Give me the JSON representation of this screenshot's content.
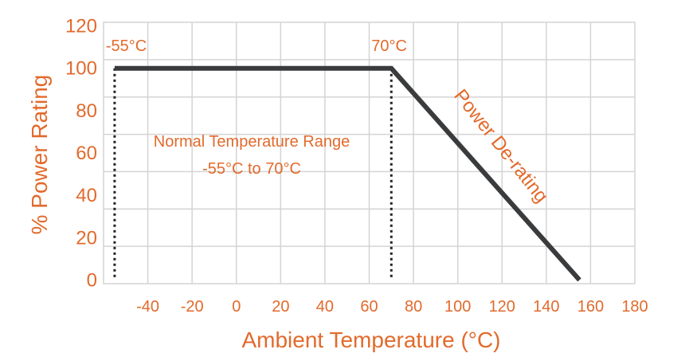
{
  "chart_data": {
    "type": "line",
    "xlabel": "Ambient Temperature (°C)",
    "ylabel": "% Power Rating",
    "xlim": [
      -60,
      180
    ],
    "ylim": [
      0,
      120
    ],
    "x_ticks": [
      -40,
      -20,
      0,
      20,
      40,
      60,
      80,
      100,
      120,
      140,
      160,
      180
    ],
    "y_ticks": [
      0,
      20,
      40,
      60,
      80,
      100,
      120
    ],
    "grid": true,
    "series": [
      {
        "points": [
          {
            "x": -55,
            "y": 100
          },
          {
            "x": 70,
            "y": 100
          },
          {
            "x": 155,
            "y": 0
          }
        ]
      }
    ],
    "reference_lines": [
      {
        "x": -55,
        "label": "-55°C"
      },
      {
        "x": 70,
        "label": "70°C"
      }
    ],
    "annotations": {
      "normal_range_line1": "Normal Temperature Range",
      "normal_range_line2": "-55°C to 70°C",
      "slope_label": "Power De-rating"
    }
  },
  "colors": {
    "accent_text": "#e26a2c",
    "line": "#3a3b3d",
    "grid": "#d4d4d4",
    "dotted": "#222222"
  }
}
